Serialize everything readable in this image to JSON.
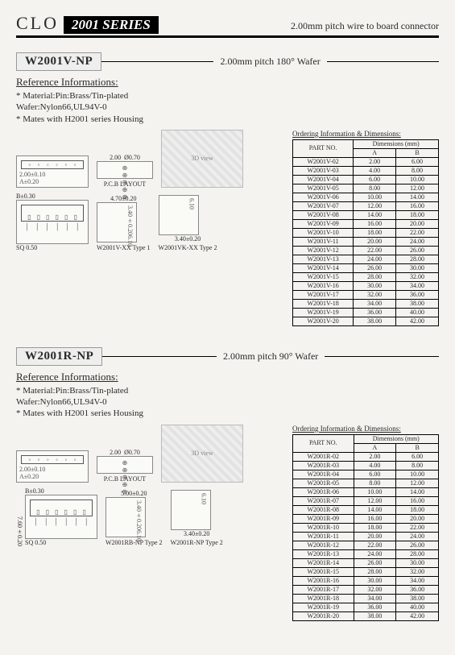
{
  "header": {
    "brand": "CLO",
    "series": "2001 SERIES",
    "tagline": "2.00mm pitch wire to board connector"
  },
  "sections": [
    {
      "model": "W2001V-NP",
      "subtitle": "2.00mm pitch 180° Wafer",
      "ref_heading": "Reference Informations:",
      "ref_lines": [
        "* Material:Pin:Brass/Tin-plated",
        "   Wafer:Nylon66,UL94V-0",
        "* Mates with H2001 series Housing"
      ],
      "diag_labels": {
        "pitch": "2.00",
        "hole": "Ø0.70",
        "pcb": "P.C.B LAYOUT",
        "tol_w": "2.00±0.10",
        "tol_a": "A±0.20",
        "tol_b": "B±0.30",
        "sq": "SQ 0.50",
        "w": "4.70±0.20",
        "h1": "3.40±0.20",
        "h2": "6.10",
        "t1": "W2001V-XX Type 1",
        "t2": "W2001VK-XX Type 2"
      },
      "table_title": "Ordering Information & Dimensions:",
      "col_part": "PART NO.",
      "col_dim": "Dimensions (mm)",
      "col_a": "A",
      "col_b": "B",
      "rows": [
        [
          "W2001V-02",
          "2.00",
          "6.00"
        ],
        [
          "W2001V-03",
          "4.00",
          "8.00"
        ],
        [
          "W2001V-04",
          "6.00",
          "10.00"
        ],
        [
          "W2001V-05",
          "8.00",
          "12.00"
        ],
        [
          "W2001V-06",
          "10.00",
          "14.00"
        ],
        [
          "W2001V-07",
          "12.00",
          "16.00"
        ],
        [
          "W2001V-08",
          "14.00",
          "18.00"
        ],
        [
          "W2001V-09",
          "16.00",
          "20.00"
        ],
        [
          "W2001V-10",
          "18.00",
          "22.00"
        ],
        [
          "W2001V-11",
          "20.00",
          "24.00"
        ],
        [
          "W2001V-12",
          "22.00",
          "26.00"
        ],
        [
          "W2001V-13",
          "24.00",
          "28.00"
        ],
        [
          "W2001V-14",
          "26.00",
          "30.00"
        ],
        [
          "W2001V-15",
          "28.00",
          "32.00"
        ],
        [
          "W2001V-16",
          "30.00",
          "34.00"
        ],
        [
          "W2001V-17",
          "32.00",
          "36.00"
        ],
        [
          "W2001V-18",
          "34.00",
          "38.00"
        ],
        [
          "W2001V-19",
          "36.00",
          "40.00"
        ],
        [
          "W2001V-20",
          "38.00",
          "42.00"
        ]
      ]
    },
    {
      "model": "W2001R-NP",
      "subtitle": "2.00mm pitch 90° Wafer",
      "ref_heading": "Reference Informations:",
      "ref_lines": [
        "* Material:Pin:Brass/Tin-plated",
        "   Wafer:Nylon66,UL94V-0",
        "* Mates with H2001 series Housing"
      ],
      "diag_labels": {
        "pitch": "2.00",
        "hole": "Ø0.70",
        "pcb": "P.C.B LAYOUT",
        "tol_w": "2.00±0.10",
        "tol_a": "A±0.20",
        "tol_b": "B±0.30",
        "sq": "SQ 0.50",
        "w": "5.00±0.20",
        "h1": "3.40±0.20",
        "h2": "6.10",
        "side": "7.60±0.20",
        "t1": "W2001RB-NP Type 2",
        "t2": "W2001R-NP Type 2"
      },
      "table_title": "Ordering Information & Dimensions:",
      "col_part": "PART NO.",
      "col_dim": "Dimensions (mm)",
      "col_a": "A",
      "col_b": "B",
      "rows": [
        [
          "W2001R-02",
          "2.00",
          "6.00"
        ],
        [
          "W2001R-03",
          "4.00",
          "8.00"
        ],
        [
          "W2001R-04",
          "6.00",
          "10.00"
        ],
        [
          "W2001R-05",
          "8.00",
          "12.00"
        ],
        [
          "W2001R-06",
          "10.00",
          "14.00"
        ],
        [
          "W2001R-07",
          "12.00",
          "16.00"
        ],
        [
          "W2001R-08",
          "14.00",
          "18.00"
        ],
        [
          "W2001R-09",
          "16.00",
          "20.00"
        ],
        [
          "W2001R-10",
          "18.00",
          "22.00"
        ],
        [
          "W2001R-11",
          "20.00",
          "24.00"
        ],
        [
          "W2001R-12",
          "22.00",
          "26.00"
        ],
        [
          "W2001R-13",
          "24.00",
          "28.00"
        ],
        [
          "W2001R-14",
          "26.00",
          "30.00"
        ],
        [
          "W2001R-15",
          "28.00",
          "32.00"
        ],
        [
          "W2001R-16",
          "30.00",
          "34.00"
        ],
        [
          "W2001R-17",
          "32.00",
          "36.00"
        ],
        [
          "W2001R-18",
          "34.00",
          "38.00"
        ],
        [
          "W2001R-19",
          "36.00",
          "40.00"
        ],
        [
          "W2001R-20",
          "38.00",
          "42.00"
        ]
      ]
    }
  ]
}
